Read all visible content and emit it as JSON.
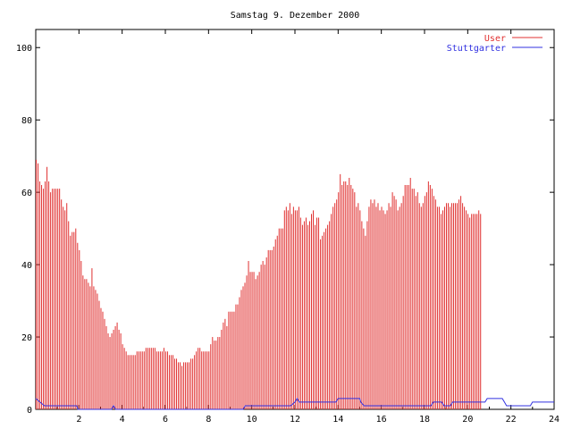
{
  "chart_data": {
    "type": "bar",
    "title": "Samstag 9. Dezember 2000",
    "xlabel": "",
    "ylabel": "",
    "xlim": [
      0,
      24
    ],
    "ylim": [
      0,
      105
    ],
    "x_ticks": [
      "2",
      "4",
      "6",
      "8",
      "10",
      "12",
      "14",
      "16",
      "18",
      "20",
      "22",
      "24"
    ],
    "y_ticks": [
      "0",
      "20",
      "40",
      "60",
      "80",
      "100"
    ],
    "x_step_hours": 0.0833,
    "legend_position": "top-right",
    "series": [
      {
        "name": "User",
        "type": "impulse",
        "color": "#e03030",
        "values": [
          69,
          68,
          63,
          62,
          61,
          63,
          67,
          63,
          60,
          61,
          61,
          61,
          61,
          61,
          58,
          56,
          55,
          57,
          52,
          48,
          49,
          49,
          50,
          46,
          44,
          41,
          37,
          36,
          36,
          35,
          34,
          39,
          34,
          33,
          32,
          30,
          28,
          27,
          25,
          23,
          21,
          20,
          21,
          22,
          23,
          24,
          22,
          21,
          18,
          17,
          16,
          15,
          15,
          15,
          15,
          15,
          16,
          16,
          16,
          16,
          16,
          17,
          17,
          17,
          17,
          17,
          17,
          16,
          16,
          16,
          16,
          17,
          16,
          16,
          15,
          15,
          15,
          14,
          14,
          13,
          13,
          12,
          13,
          13,
          13,
          13,
          14,
          14,
          15,
          16,
          17,
          17,
          16,
          16,
          16,
          16,
          16,
          18,
          20,
          19,
          19,
          20,
          20,
          22,
          24,
          25,
          23,
          27,
          27,
          27,
          27,
          29,
          29,
          31,
          33,
          34,
          35,
          37,
          41,
          38,
          38,
          38,
          36,
          37,
          38,
          40,
          41,
          40,
          42,
          44,
          44,
          44,
          45,
          47,
          48,
          50,
          50,
          50,
          55,
          56,
          55,
          57,
          54,
          56,
          55,
          55,
          56,
          53,
          51,
          52,
          53,
          51,
          52,
          54,
          55,
          51,
          53,
          53,
          47,
          48,
          49,
          50,
          51,
          52,
          54,
          56,
          57,
          58,
          60,
          65,
          62,
          63,
          63,
          62,
          64,
          62,
          61,
          60,
          56,
          57,
          55,
          52,
          50,
          48,
          52,
          56,
          58,
          57,
          58,
          56,
          57,
          55,
          56,
          55,
          54,
          55,
          57,
          56,
          60,
          59,
          58,
          55,
          56,
          57,
          59,
          62,
          62,
          62,
          64,
          61,
          61,
          59,
          60,
          57,
          56,
          57,
          59,
          60,
          63,
          62,
          61,
          59,
          58,
          56,
          56,
          54,
          55,
          56,
          57,
          57,
          56,
          57,
          57,
          57,
          57,
          58,
          59,
          57,
          56,
          55,
          54,
          53,
          54,
          54,
          54,
          54,
          55,
          54
        ]
      },
      {
        "name": "Stuttgarter",
        "type": "line",
        "color": "#3030e0",
        "points": [
          [
            0,
            3
          ],
          [
            0.2,
            2
          ],
          [
            0.4,
            1
          ],
          [
            1.9,
            1
          ],
          [
            1.95,
            0
          ],
          [
            3.5,
            0
          ],
          [
            3.6,
            1
          ],
          [
            3.7,
            0
          ],
          [
            9.6,
            0
          ],
          [
            9.7,
            1
          ],
          [
            11.8,
            1
          ],
          [
            12,
            2
          ],
          [
            12.1,
            3
          ],
          [
            12.2,
            2
          ],
          [
            13.9,
            2
          ],
          [
            14,
            3
          ],
          [
            15,
            3
          ],
          [
            15.05,
            2
          ],
          [
            15.2,
            1
          ],
          [
            18.3,
            1
          ],
          [
            18.4,
            2
          ],
          [
            18.8,
            2
          ],
          [
            18.9,
            1
          ],
          [
            19.2,
            1
          ],
          [
            19.3,
            2
          ],
          [
            20.8,
            2
          ],
          [
            20.9,
            3
          ],
          [
            21.6,
            3
          ],
          [
            21.7,
            2
          ],
          [
            21.8,
            1
          ],
          [
            22.9,
            1
          ],
          [
            23,
            2
          ],
          [
            24,
            2
          ]
        ]
      }
    ]
  }
}
